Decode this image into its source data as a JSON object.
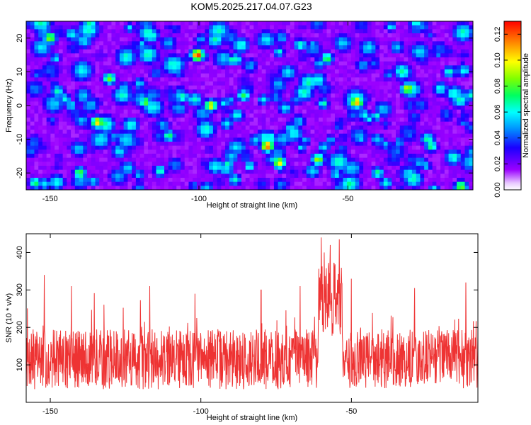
{
  "chart_data": [
    {
      "type": "heatmap",
      "title": "KOM5.2025.217.04.07.G23",
      "xlabel": "Height of straight line (km)",
      "ylabel": "Frequency (Hz)",
      "xlim": [
        -158,
        -8
      ],
      "ylim": [
        -25,
        25
      ],
      "x_ticks": [
        -150,
        -100,
        -50
      ],
      "y_ticks": [
        -20,
        -10,
        0,
        10,
        20
      ],
      "colorbar": {
        "label": "Normalized spectral amplitude",
        "range": [
          0,
          0.13
        ],
        "ticks": [
          0,
          0.02,
          0.04,
          0.06,
          0.08,
          0.1,
          0.12
        ]
      },
      "colormap": [
        "#ffffff",
        "#9a00ff",
        "#1a00ff",
        "#0090ff",
        "#00ffff",
        "#00ff60",
        "#80ff00",
        "#ffff00",
        "#ff8000",
        "#ff0000"
      ],
      "peaks": [
        {
          "x": -100.5,
          "y": 15,
          "value": 0.128
        },
        {
          "x": -77,
          "y": -12,
          "value": 0.118
        },
        {
          "x": -47,
          "y": 1,
          "value": 0.112
        },
        {
          "x": -134,
          "y": -5,
          "value": 0.105
        },
        {
          "x": -73,
          "y": -17,
          "value": 0.1
        },
        {
          "x": -96,
          "y": 0,
          "value": 0.1
        },
        {
          "x": -30,
          "y": 5,
          "value": 0.095
        },
        {
          "x": -150,
          "y": 20,
          "value": 0.09
        },
        {
          "x": -130,
          "y": 8,
          "value": 0.085
        },
        {
          "x": -60,
          "y": -16,
          "value": 0.09
        },
        {
          "x": -12,
          "y": -24,
          "value": 0.085
        },
        {
          "x": -140,
          "y": -20,
          "value": 0.08
        },
        {
          "x": -118,
          "y": 1,
          "value": 0.08
        },
        {
          "x": -85,
          "y": 3,
          "value": 0.075
        },
        {
          "x": -57,
          "y": 14,
          "value": 0.075
        },
        {
          "x": -22,
          "y": -12,
          "value": 0.07
        },
        {
          "x": -155,
          "y": -23,
          "value": 0.07
        },
        {
          "x": -110,
          "y": -9,
          "value": 0.07
        },
        {
          "x": -66,
          "y": 18,
          "value": 0.065
        },
        {
          "x": -40,
          "y": -20,
          "value": 0.065
        },
        {
          "x": -16,
          "y": 10,
          "value": 0.06
        },
        {
          "x": -88,
          "y": -22,
          "value": 0.06
        },
        {
          "x": -125,
          "y": 14,
          "value": 0.06
        },
        {
          "x": -145,
          "y": 2,
          "value": 0.055
        }
      ]
    },
    {
      "type": "line",
      "xlabel": "Height of straight line (km)",
      "ylabel": "SNR (10 * v/v)",
      "xlim": [
        -158,
        -8
      ],
      "ylim": [
        0,
        450
      ],
      "x_ticks": [
        -150,
        -100,
        -50
      ],
      "y_ticks": [
        100,
        200,
        300,
        400
      ],
      "color": "#ee3333",
      "baseline": 115,
      "noise_amplitude": 80,
      "spikes": [
        {
          "x": -152,
          "y": 340
        },
        {
          "x": -143,
          "y": 310
        },
        {
          "x": -117,
          "y": 310
        },
        {
          "x": -102,
          "y": 290
        },
        {
          "x": -80,
          "y": 300
        },
        {
          "x": -67,
          "y": 310
        },
        {
          "x": -60,
          "y": 440
        },
        {
          "x": -59,
          "y": 400
        },
        {
          "x": -57,
          "y": 420
        },
        {
          "x": -54,
          "y": 435
        },
        {
          "x": -50,
          "y": 330
        },
        {
          "x": -29,
          "y": 305
        },
        {
          "x": -12,
          "y": 320
        }
      ],
      "burst_region": {
        "x_from": -61,
        "x_to": -53,
        "y": 280
      }
    }
  ]
}
